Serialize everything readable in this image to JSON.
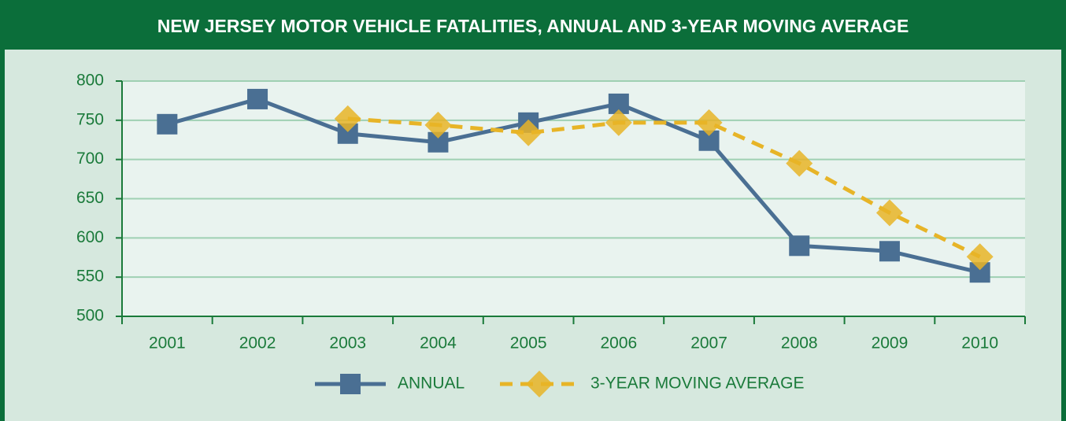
{
  "chart_data": {
    "type": "line",
    "title": "NEW JERSEY MOTOR VEHICLE FATALITIES, ANNUAL AND 3-YEAR MOVING AVERAGE",
    "categories": [
      "2001",
      "2002",
      "2003",
      "2004",
      "2005",
      "2006",
      "2007",
      "2008",
      "2009",
      "2010"
    ],
    "series": [
      {
        "name": "ANNUAL",
        "color": "#4a6f93",
        "values": [
          745,
          777,
          733,
          722,
          747,
          771,
          724,
          590,
          583,
          556
        ]
      },
      {
        "name": "3-YEAR MOVING AVERAGE",
        "color": "#e7b427",
        "values": [
          null,
          null,
          752,
          744,
          734,
          747,
          747,
          695,
          632,
          576
        ]
      }
    ],
    "ylim": [
      500,
      800
    ],
    "yticks": [
      500,
      550,
      600,
      650,
      700,
      750,
      800
    ],
    "grid": true
  }
}
